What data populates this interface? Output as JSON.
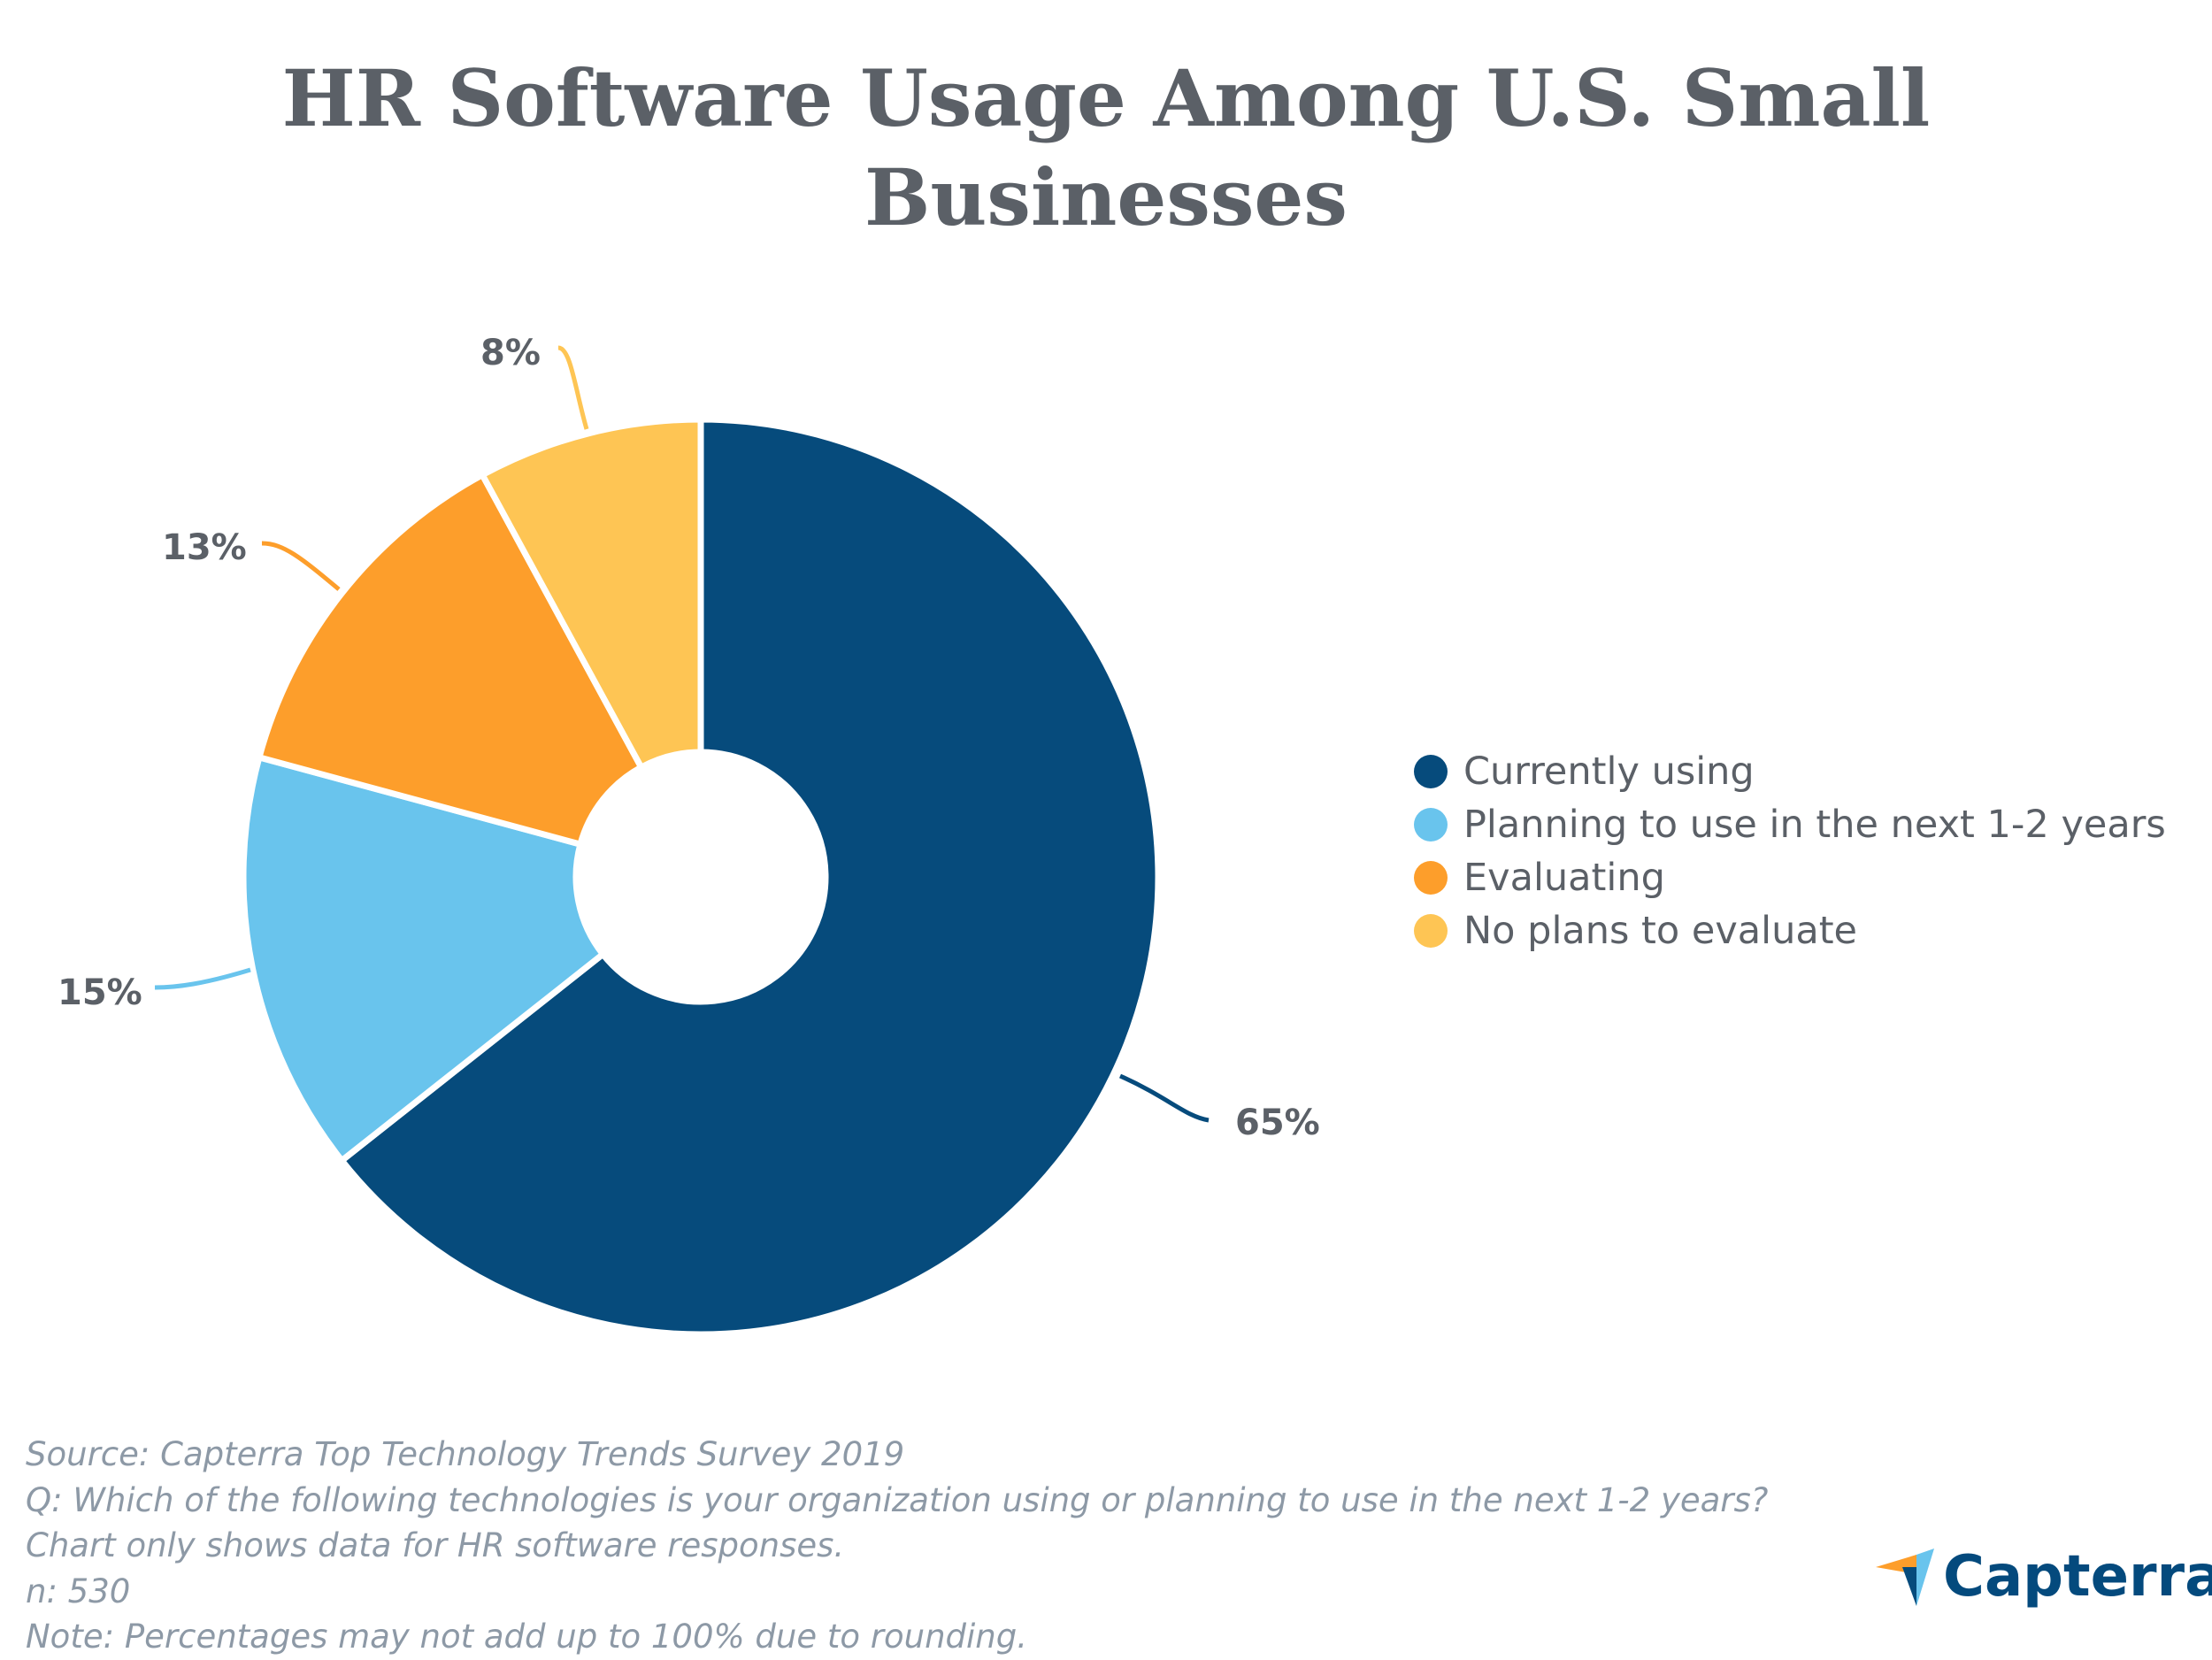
{
  "chart_data": {
    "type": "pie",
    "subtype": "donut",
    "title": [
      "HR Software Usage Among U.S. Small",
      "Businesses"
    ],
    "categories": [
      "Currently using",
      "Planning to use in the next 1-2 years",
      "Evaluating",
      "No plans to evaluate"
    ],
    "values": [
      65,
      15,
      13,
      8
    ],
    "data_labels": [
      "65%",
      "15%",
      "13%",
      "8%"
    ],
    "colors": [
      "#064b7c",
      "#69c4ed",
      "#fd9e2b",
      "#fec554"
    ],
    "legend_position": "right"
  },
  "footer": [
    "Source: Capterra Top Technology Trends Survey 2019",
    "Q: Which of the following technologies is your organization using or planning to use in the next 1-2 years?",
    "Chart only shows data for HR software responses.",
    "n: 530",
    "Note: Percentages may not add up to 100% due to rounding."
  ],
  "logo": {
    "text": "Capterra"
  }
}
